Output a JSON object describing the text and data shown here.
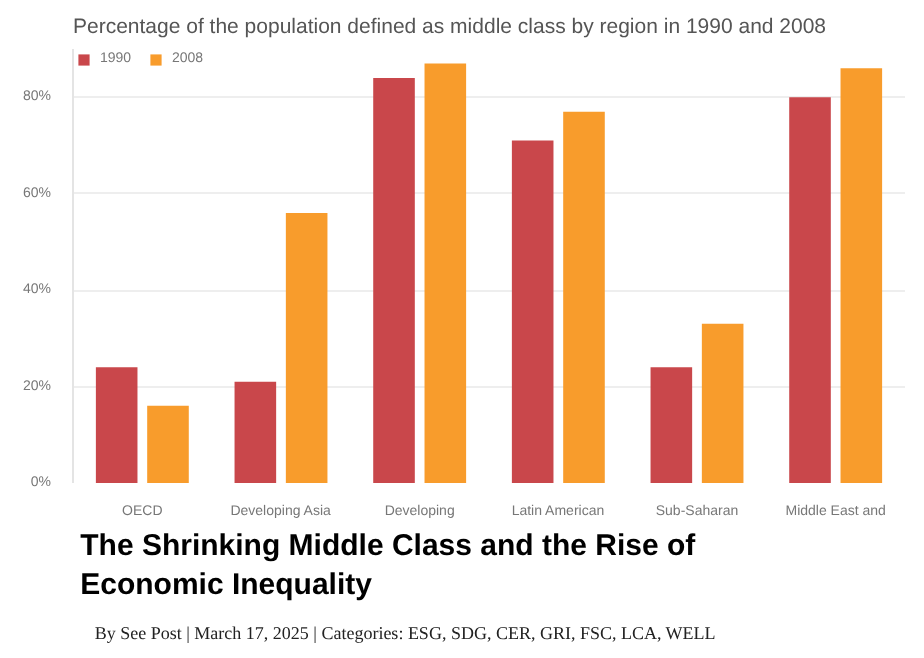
{
  "chart_data": {
    "type": "bar",
    "title": "Percentage of the population defined as middle class by region in 1990 and 2008",
    "categories": [
      "OECD",
      "Developing Asia",
      "Developing",
      "Latin American",
      "Sub-Saharan",
      "Middle East and"
    ],
    "series": [
      {
        "name": "1990",
        "color": "#c9474b",
        "values": [
          24,
          21,
          84,
          71,
          24,
          80
        ]
      },
      {
        "name": "2008",
        "color": "#f89c2c",
        "values": [
          16,
          56,
          87,
          77,
          33,
          86
        ]
      }
    ],
    "ylim": [
      0,
      90
    ],
    "yticks": [
      {
        "value": 0,
        "label": "0%"
      },
      {
        "value": 20,
        "label": "20%"
      },
      {
        "value": 40,
        "label": "40%"
      },
      {
        "value": 60,
        "label": "60%"
      },
      {
        "value": 80,
        "label": "80%"
      }
    ],
    "grid": "y",
    "legend": "top left",
    "annotations": [
      "The Shrinking Middle Class and the Rise of Economic Inequality",
      "By See Post | March 17, 2025 | Categories: ESG, SDG, CER, GRI, FSC, LCA, WELL"
    ]
  }
}
